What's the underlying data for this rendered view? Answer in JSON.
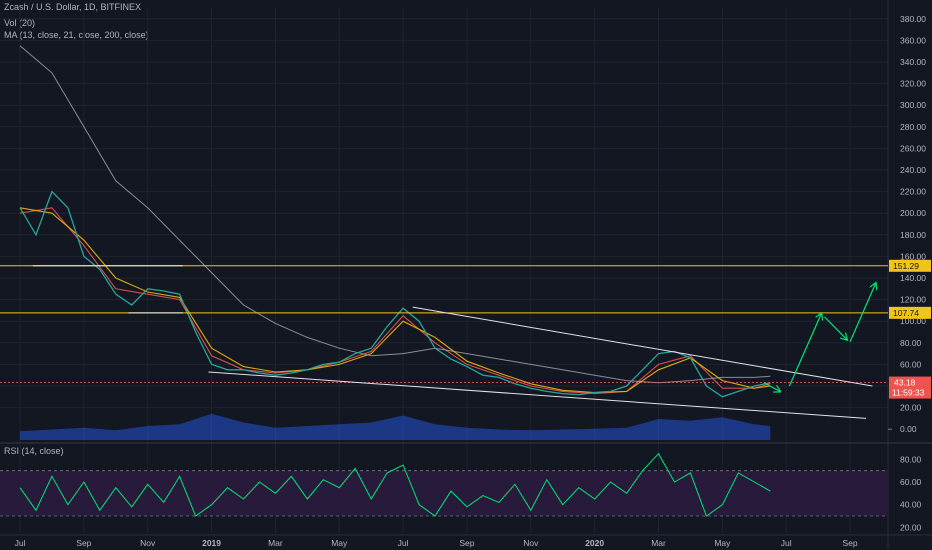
{
  "header": {
    "symbol_line": "Zcash / U.S. Dollar, 1D, BITFINEX",
    "vol_line": "Vol (20)",
    "ma_line": "MA (13, close, 21, close, 200, close)",
    "rsi_line": "RSI (14, close)"
  },
  "colors": {
    "background": "#131722",
    "grid": "#1e2330",
    "candle_up": "#26a69a",
    "candle_down": "#ef5350",
    "ma_fast": "#ef5350",
    "ma_mid": "#f0b90b",
    "ma_slow": "#b2b5be",
    "level": "#f0c419",
    "current_price": "#ef5350",
    "trendline": "#e0e3eb",
    "arrow": "#00e676",
    "rsi_line": "#00e676",
    "rsi_band": "#2a1b3d",
    "volume": "#2962ff"
  },
  "chart_data": [
    {
      "type": "line",
      "pane": "price",
      "x_ticks": [
        "Jul",
        "Sep",
        "Nov",
        "2019",
        "Mar",
        "May",
        "Jul",
        "Sep",
        "Nov",
        "2020",
        "Mar",
        "May",
        "Jul",
        "Sep"
      ],
      "y_ticks": [
        20,
        40,
        60,
        80,
        100,
        120,
        140,
        160,
        180,
        200,
        220,
        240,
        260,
        280,
        300,
        320,
        340,
        360,
        380
      ],
      "y_tick_labels": [
        "20.00",
        "40.00",
        "60.00",
        "80.00",
        "100.00",
        "120.00",
        "140.00",
        "160.00",
        "180.00",
        "200.00",
        "220.00",
        "240.00",
        "260.00",
        "280.00",
        "300.00",
        "320.00",
        "340.00",
        "360.00",
        "380.00"
      ],
      "ylim": [
        -10,
        390
      ],
      "x_month_index_range": [
        0,
        27
      ],
      "close_series": {
        "x": [
          0,
          0.5,
          1,
          1.5,
          2,
          2.5,
          3,
          3.5,
          4,
          4.5,
          5,
          5.5,
          6,
          6.5,
          7,
          7.5,
          8,
          8.5,
          9,
          9.5,
          10,
          10.5,
          11,
          11.5,
          12,
          12.5,
          13,
          13.5,
          14,
          14.5,
          15,
          15.5,
          16,
          16.5,
          17,
          17.5,
          18,
          18.5,
          19,
          19.5,
          20,
          20.5,
          21,
          21.5,
          22,
          22.5,
          23,
          23.5
        ],
        "y": [
          205,
          180,
          220,
          205,
          160,
          148,
          125,
          115,
          130,
          128,
          125,
          90,
          60,
          55,
          55,
          52,
          50,
          52,
          55,
          60,
          62,
          70,
          75,
          95,
          112,
          100,
          75,
          65,
          58,
          50,
          48,
          42,
          38,
          35,
          33,
          32,
          34,
          35,
          40,
          55,
          70,
          72,
          66,
          40,
          30,
          35,
          40,
          43
        ]
      },
      "moving_averages": [
        {
          "name": "MA 13",
          "x": [
            0,
            1,
            2,
            3,
            4,
            5,
            6,
            7,
            8,
            9,
            10,
            11,
            12,
            13,
            14,
            15,
            16,
            17,
            18,
            19,
            20,
            21,
            22,
            23,
            23.5
          ],
          "y": [
            200,
            205,
            170,
            130,
            125,
            120,
            68,
            55,
            52,
            55,
            62,
            72,
            105,
            80,
            60,
            50,
            40,
            35,
            33,
            35,
            60,
            68,
            38,
            38,
            42
          ]
        },
        {
          "name": "MA 21",
          "x": [
            0,
            1,
            2,
            3,
            4,
            5,
            6,
            7,
            8,
            9,
            10,
            11,
            12,
            13,
            14,
            15,
            16,
            17,
            18,
            19,
            20,
            21,
            22,
            23,
            23.5
          ],
          "y": [
            205,
            200,
            175,
            140,
            127,
            122,
            75,
            58,
            53,
            55,
            60,
            70,
            100,
            85,
            63,
            52,
            42,
            36,
            34,
            35,
            55,
            66,
            45,
            38,
            40
          ]
        },
        {
          "name": "MA 200",
          "x": [
            0,
            1,
            2,
            3,
            4,
            5,
            6,
            7,
            8,
            9,
            10,
            11,
            12,
            13,
            14,
            15,
            16,
            17,
            18,
            19,
            20,
            21,
            22,
            23,
            23.5
          ],
          "y": [
            355,
            330,
            280,
            230,
            205,
            175,
            145,
            115,
            98,
            85,
            75,
            68,
            70,
            75,
            70,
            65,
            60,
            55,
            50,
            45,
            43,
            45,
            48,
            48,
            49
          ]
        }
      ],
      "levels": [
        {
          "label": "151.29",
          "value": 151.29
        },
        {
          "label": "107.74",
          "value": 107.74
        }
      ],
      "current_price": {
        "label": "43.18",
        "countdown": "11:59:33",
        "value": 43.18
      },
      "trendlines": [
        {
          "x": [
            12.3,
            26.7
          ],
          "y": [
            113,
            40
          ]
        },
        {
          "x": [
            5.9,
            26.5
          ],
          "y": [
            53,
            10
          ]
        },
        {
          "x": [
            0.4,
            5.1
          ],
          "y": [
            151.29,
            151.29
          ]
        },
        {
          "x": [
            3.4,
            5.1
          ],
          "y": [
            107.74,
            107.74
          ]
        }
      ],
      "projection_arrows": [
        {
          "x": [
            23.3,
            23.8
          ],
          "y": [
            43,
            35
          ]
        },
        {
          "x": [
            24.1,
            25.1
          ],
          "y": [
            40,
            107
          ]
        },
        {
          "x": [
            25.2,
            25.9
          ],
          "y": [
            104,
            83
          ]
        },
        {
          "x": [
            26.0,
            26.8
          ],
          "y": [
            81,
            135
          ]
        }
      ],
      "volume_range": [
        0,
        100
      ],
      "volume_series": {
        "x": [
          0,
          1,
          2,
          3,
          4,
          5,
          6,
          7,
          8,
          9,
          10,
          11,
          12,
          13,
          14,
          15,
          16,
          17,
          18,
          19,
          20,
          21,
          22,
          23,
          23.5
        ],
        "y": [
          25,
          30,
          35,
          28,
          40,
          45,
          75,
          50,
          35,
          40,
          45,
          50,
          70,
          45,
          35,
          30,
          28,
          30,
          32,
          35,
          60,
          55,
          65,
          45,
          40
        ]
      }
    },
    {
      "type": "line",
      "pane": "rsi",
      "y_ticks": [
        20,
        40,
        60,
        80
      ],
      "y_tick_labels": [
        "20.00",
        "40.00",
        "60.00",
        "80.00"
      ],
      "ylim": [
        15,
        90
      ],
      "band": [
        30,
        70
      ],
      "series": {
        "x": [
          0,
          0.5,
          1,
          1.5,
          2,
          2.5,
          3,
          3.5,
          4,
          4.5,
          5,
          5.5,
          6,
          6.5,
          7,
          7.5,
          8,
          8.5,
          9,
          9.5,
          10,
          10.5,
          11,
          11.5,
          12,
          12.5,
          13,
          13.5,
          14,
          14.5,
          15,
          15.5,
          16,
          16.5,
          17,
          17.5,
          18,
          18.5,
          19,
          19.5,
          20,
          20.5,
          21,
          21.5,
          22,
          22.5,
          23,
          23.5
        ],
        "y": [
          55,
          35,
          65,
          40,
          60,
          35,
          55,
          38,
          58,
          42,
          65,
          30,
          40,
          55,
          45,
          60,
          50,
          65,
          45,
          62,
          55,
          72,
          45,
          68,
          75,
          40,
          30,
          52,
          38,
          48,
          42,
          58,
          35,
          62,
          40,
          55,
          45,
          60,
          50,
          70,
          85,
          60,
          68,
          30,
          40,
          68,
          60,
          52
        ]
      }
    }
  ]
}
